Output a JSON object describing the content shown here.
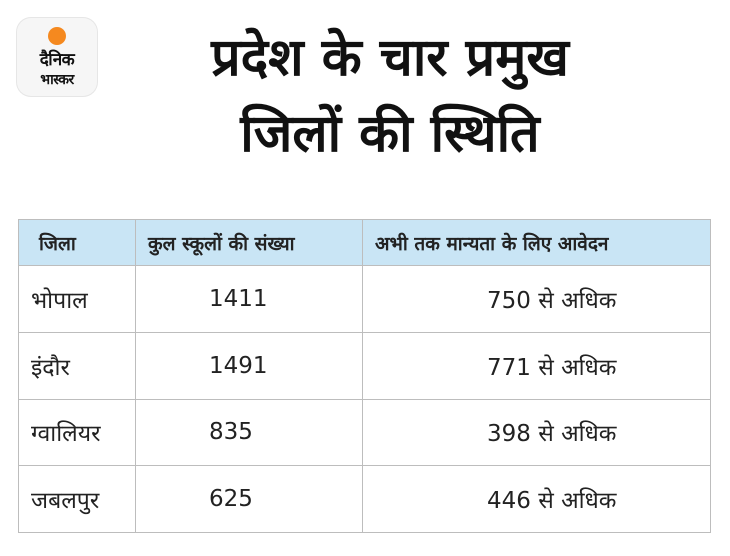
{
  "brand": {
    "line1": "दैनिक",
    "line2": "भास्कर",
    "logo_icon": "sun-circle-icon",
    "accent_color": "#f5891f"
  },
  "title": {
    "line1": "प्रदेश के चार प्रमुख",
    "line2": "जिलों की स्थिति"
  },
  "table": {
    "header_color": "#c9e5f5",
    "columns": [
      "जिला",
      "कुल स्कूलों की संख्या",
      "अभी तक मान्यता के लिए आवेदन"
    ],
    "rows": [
      {
        "district": "भोपाल",
        "schools": "1411",
        "applications": "750 से अधिक"
      },
      {
        "district": "इंदौर",
        "schools": "1491",
        "applications": "771 से अधिक"
      },
      {
        "district": "ग्वालियर",
        "schools": "835",
        "applications": "398 से अधिक"
      },
      {
        "district": "जबलपुर",
        "schools": "625",
        "applications": "446 से अधिक"
      }
    ]
  }
}
